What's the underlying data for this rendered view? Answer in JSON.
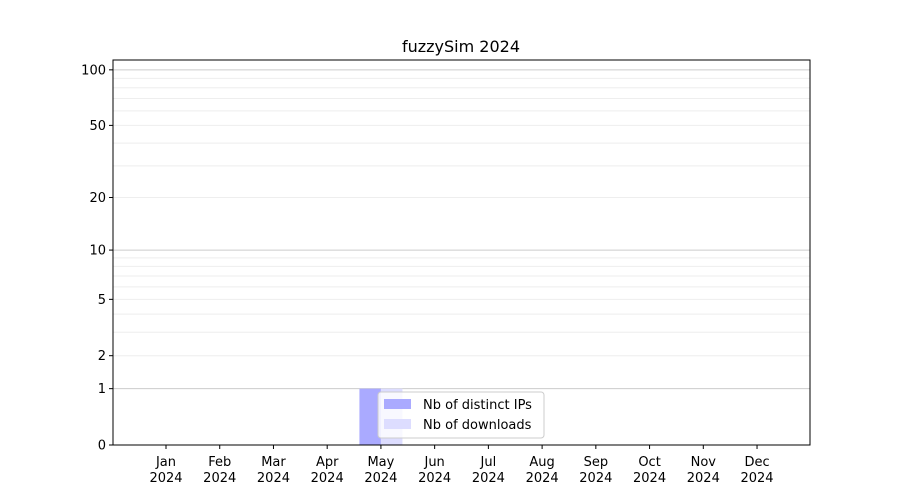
{
  "chart_data": {
    "type": "bar",
    "title": "fuzzySim 2024",
    "xlabel": "",
    "ylabel": "",
    "categories": [
      "Jan\n2024",
      "Feb\n2024",
      "Mar\n2024",
      "Apr\n2024",
      "May\n2024",
      "Jun\n2024",
      "Jul\n2024",
      "Aug\n2024",
      "Sep\n2024",
      "Oct\n2024",
      "Nov\n2024",
      "Dec\n2024"
    ],
    "series": [
      {
        "name": "Nb of distinct IPs",
        "color": "#aaaaff",
        "values": [
          0,
          0,
          0,
          0,
          1,
          0,
          0,
          0,
          0,
          0,
          0,
          0
        ]
      },
      {
        "name": "Nb of downloads",
        "color": "#ddddff",
        "values": [
          0,
          0,
          0,
          0,
          1,
          0,
          0,
          0,
          0,
          0,
          0,
          0
        ]
      }
    ],
    "y_scale": "log(1+y)",
    "yticks": [
      0,
      1,
      2,
      5,
      10,
      20,
      50,
      100
    ],
    "ylim": [
      0,
      113
    ],
    "grid": true,
    "legend_position": "lower-center"
  }
}
